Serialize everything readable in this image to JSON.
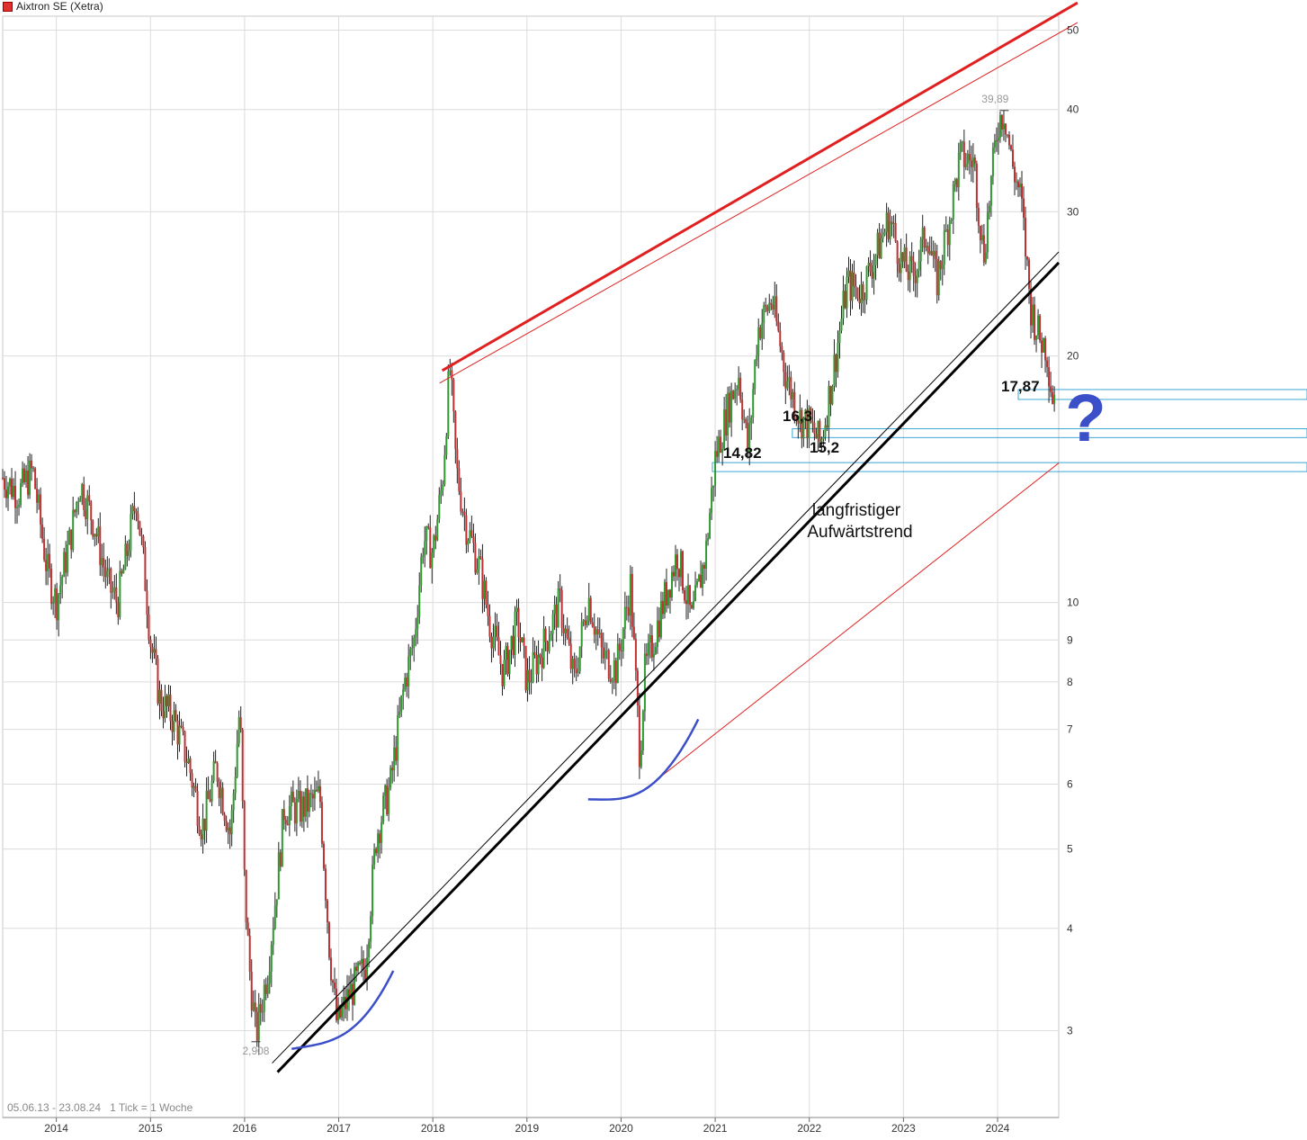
{
  "title": "Aixtron SE (Xetra)",
  "range_info": "05.06.13 - 23.08.24   1 Tick = 1 Woche",
  "colors": {
    "up": "#2e9a2e",
    "down": "#c03030",
    "trend_red": "#e02020",
    "trend_black": "#000000",
    "curve": "#3a4fc8",
    "zone": "#3aa7d6"
  },
  "chart_data": {
    "type": "candlestick",
    "title": "Aixtron SE (Xetra)",
    "y_scale": "log",
    "ylim": [
      2.35,
      52
    ],
    "xlim": [
      2013.43,
      2024.65
    ],
    "x_ticks": [
      "2014",
      "2015",
      "2016",
      "2017",
      "2018",
      "2019",
      "2020",
      "2021",
      "2022",
      "2023",
      "2024"
    ],
    "y_ticks": [
      3,
      4,
      5,
      6,
      7,
      8,
      9,
      10,
      20,
      30,
      40,
      50
    ],
    "grid": true,
    "price_path": [
      [
        2013.43,
        14.2
      ],
      [
        2013.6,
        13.6
      ],
      [
        2013.75,
        14.5
      ],
      [
        2013.9,
        11.0
      ],
      [
        2014.0,
        10.0
      ],
      [
        2014.15,
        12.0
      ],
      [
        2014.25,
        14.0
      ],
      [
        2014.4,
        12.5
      ],
      [
        2014.55,
        10.5
      ],
      [
        2014.65,
        10.0
      ],
      [
        2014.75,
        11.5
      ],
      [
        2014.85,
        13.5
      ],
      [
        2014.95,
        10.5
      ],
      [
        2015.0,
        9.0
      ],
      [
        2015.1,
        7.6
      ],
      [
        2015.25,
        7.2
      ],
      [
        2015.4,
        6.4
      ],
      [
        2015.55,
        5.3
      ],
      [
        2015.7,
        6.3
      ],
      [
        2015.85,
        5.2
      ],
      [
        2015.95,
        7.5
      ],
      [
        2016.0,
        4.5
      ],
      [
        2016.05,
        3.6
      ],
      [
        2016.12,
        2.95
      ],
      [
        2016.25,
        3.6
      ],
      [
        2016.35,
        4.6
      ],
      [
        2016.42,
        5.6
      ],
      [
        2016.6,
        5.6
      ],
      [
        2016.8,
        5.8
      ],
      [
        2016.9,
        3.8
      ],
      [
        2016.98,
        3.05
      ],
      [
        2017.1,
        3.3
      ],
      [
        2017.28,
        3.6
      ],
      [
        2017.4,
        5.2
      ],
      [
        2017.55,
        6.0
      ],
      [
        2017.7,
        8.0
      ],
      [
        2017.8,
        9.0
      ],
      [
        2017.9,
        12.0
      ],
      [
        2018.0,
        11.5
      ],
      [
        2018.1,
        14.0
      ],
      [
        2018.18,
        19.5
      ],
      [
        2018.25,
        14.5
      ],
      [
        2018.35,
        12.5
      ],
      [
        2018.5,
        11.0
      ],
      [
        2018.6,
        9.5
      ],
      [
        2018.75,
        8.2
      ],
      [
        2018.9,
        9.5
      ],
      [
        2019.0,
        8.0
      ],
      [
        2019.2,
        9.0
      ],
      [
        2019.35,
        10.0
      ],
      [
        2019.5,
        8.0
      ],
      [
        2019.65,
        10.2
      ],
      [
        2019.8,
        8.6
      ],
      [
        2019.95,
        8.3
      ],
      [
        2020.1,
        10.5
      ],
      [
        2020.2,
        6.5
      ],
      [
        2020.25,
        8.2
      ],
      [
        2020.45,
        10.0
      ],
      [
        2020.6,
        11.5
      ],
      [
        2020.75,
        9.5
      ],
      [
        2020.9,
        11.5
      ],
      [
        2021.0,
        15.0
      ],
      [
        2021.15,
        17.5
      ],
      [
        2021.25,
        19.0
      ],
      [
        2021.35,
        15.2
      ],
      [
        2021.45,
        21.5
      ],
      [
        2021.6,
        23.5
      ],
      [
        2021.75,
        19.0
      ],
      [
        2021.9,
        16.8
      ],
      [
        2022.0,
        16.5
      ],
      [
        2022.12,
        15.6
      ],
      [
        2022.25,
        19.0
      ],
      [
        2022.4,
        24.5
      ],
      [
        2022.55,
        24.0
      ],
      [
        2022.7,
        26.5
      ],
      [
        2022.85,
        29.5
      ],
      [
        2022.98,
        26.0
      ],
      [
        2023.1,
        25.0
      ],
      [
        2023.25,
        28.5
      ],
      [
        2023.35,
        24.5
      ],
      [
        2023.5,
        30.0
      ],
      [
        2023.6,
        35.0
      ],
      [
        2023.75,
        34.5
      ],
      [
        2023.85,
        26.5
      ],
      [
        2023.95,
        34.0
      ],
      [
        2024.0,
        38.5
      ],
      [
        2024.07,
        39.89
      ],
      [
        2024.15,
        34.5
      ],
      [
        2024.25,
        31.0
      ],
      [
        2024.35,
        23.0
      ],
      [
        2024.45,
        21.0
      ],
      [
        2024.52,
        20.5
      ],
      [
        2024.58,
        17.87
      ],
      [
        2024.62,
        18.2
      ]
    ],
    "annotations": {
      "high": "39,89",
      "low": "2,908",
      "levels": [
        "17,87",
        "16,3",
        "15,2",
        "14,82"
      ],
      "trend_text": [
        "langfristiger",
        "Aufwärtstrend"
      ],
      "question": "?"
    },
    "trendlines": [
      {
        "name": "upper_red",
        "points": [
          [
            2018.1,
            19.2
          ],
          [
            2024.85,
            54.0
          ]
        ]
      },
      {
        "name": "lower_black",
        "points": [
          [
            2016.35,
            2.67
          ],
          [
            2024.65,
            26.0
          ]
        ]
      },
      {
        "name": "lower_red",
        "points": [
          [
            2020.2,
            5.85
          ],
          [
            2024.65,
            14.8
          ]
        ]
      }
    ]
  }
}
